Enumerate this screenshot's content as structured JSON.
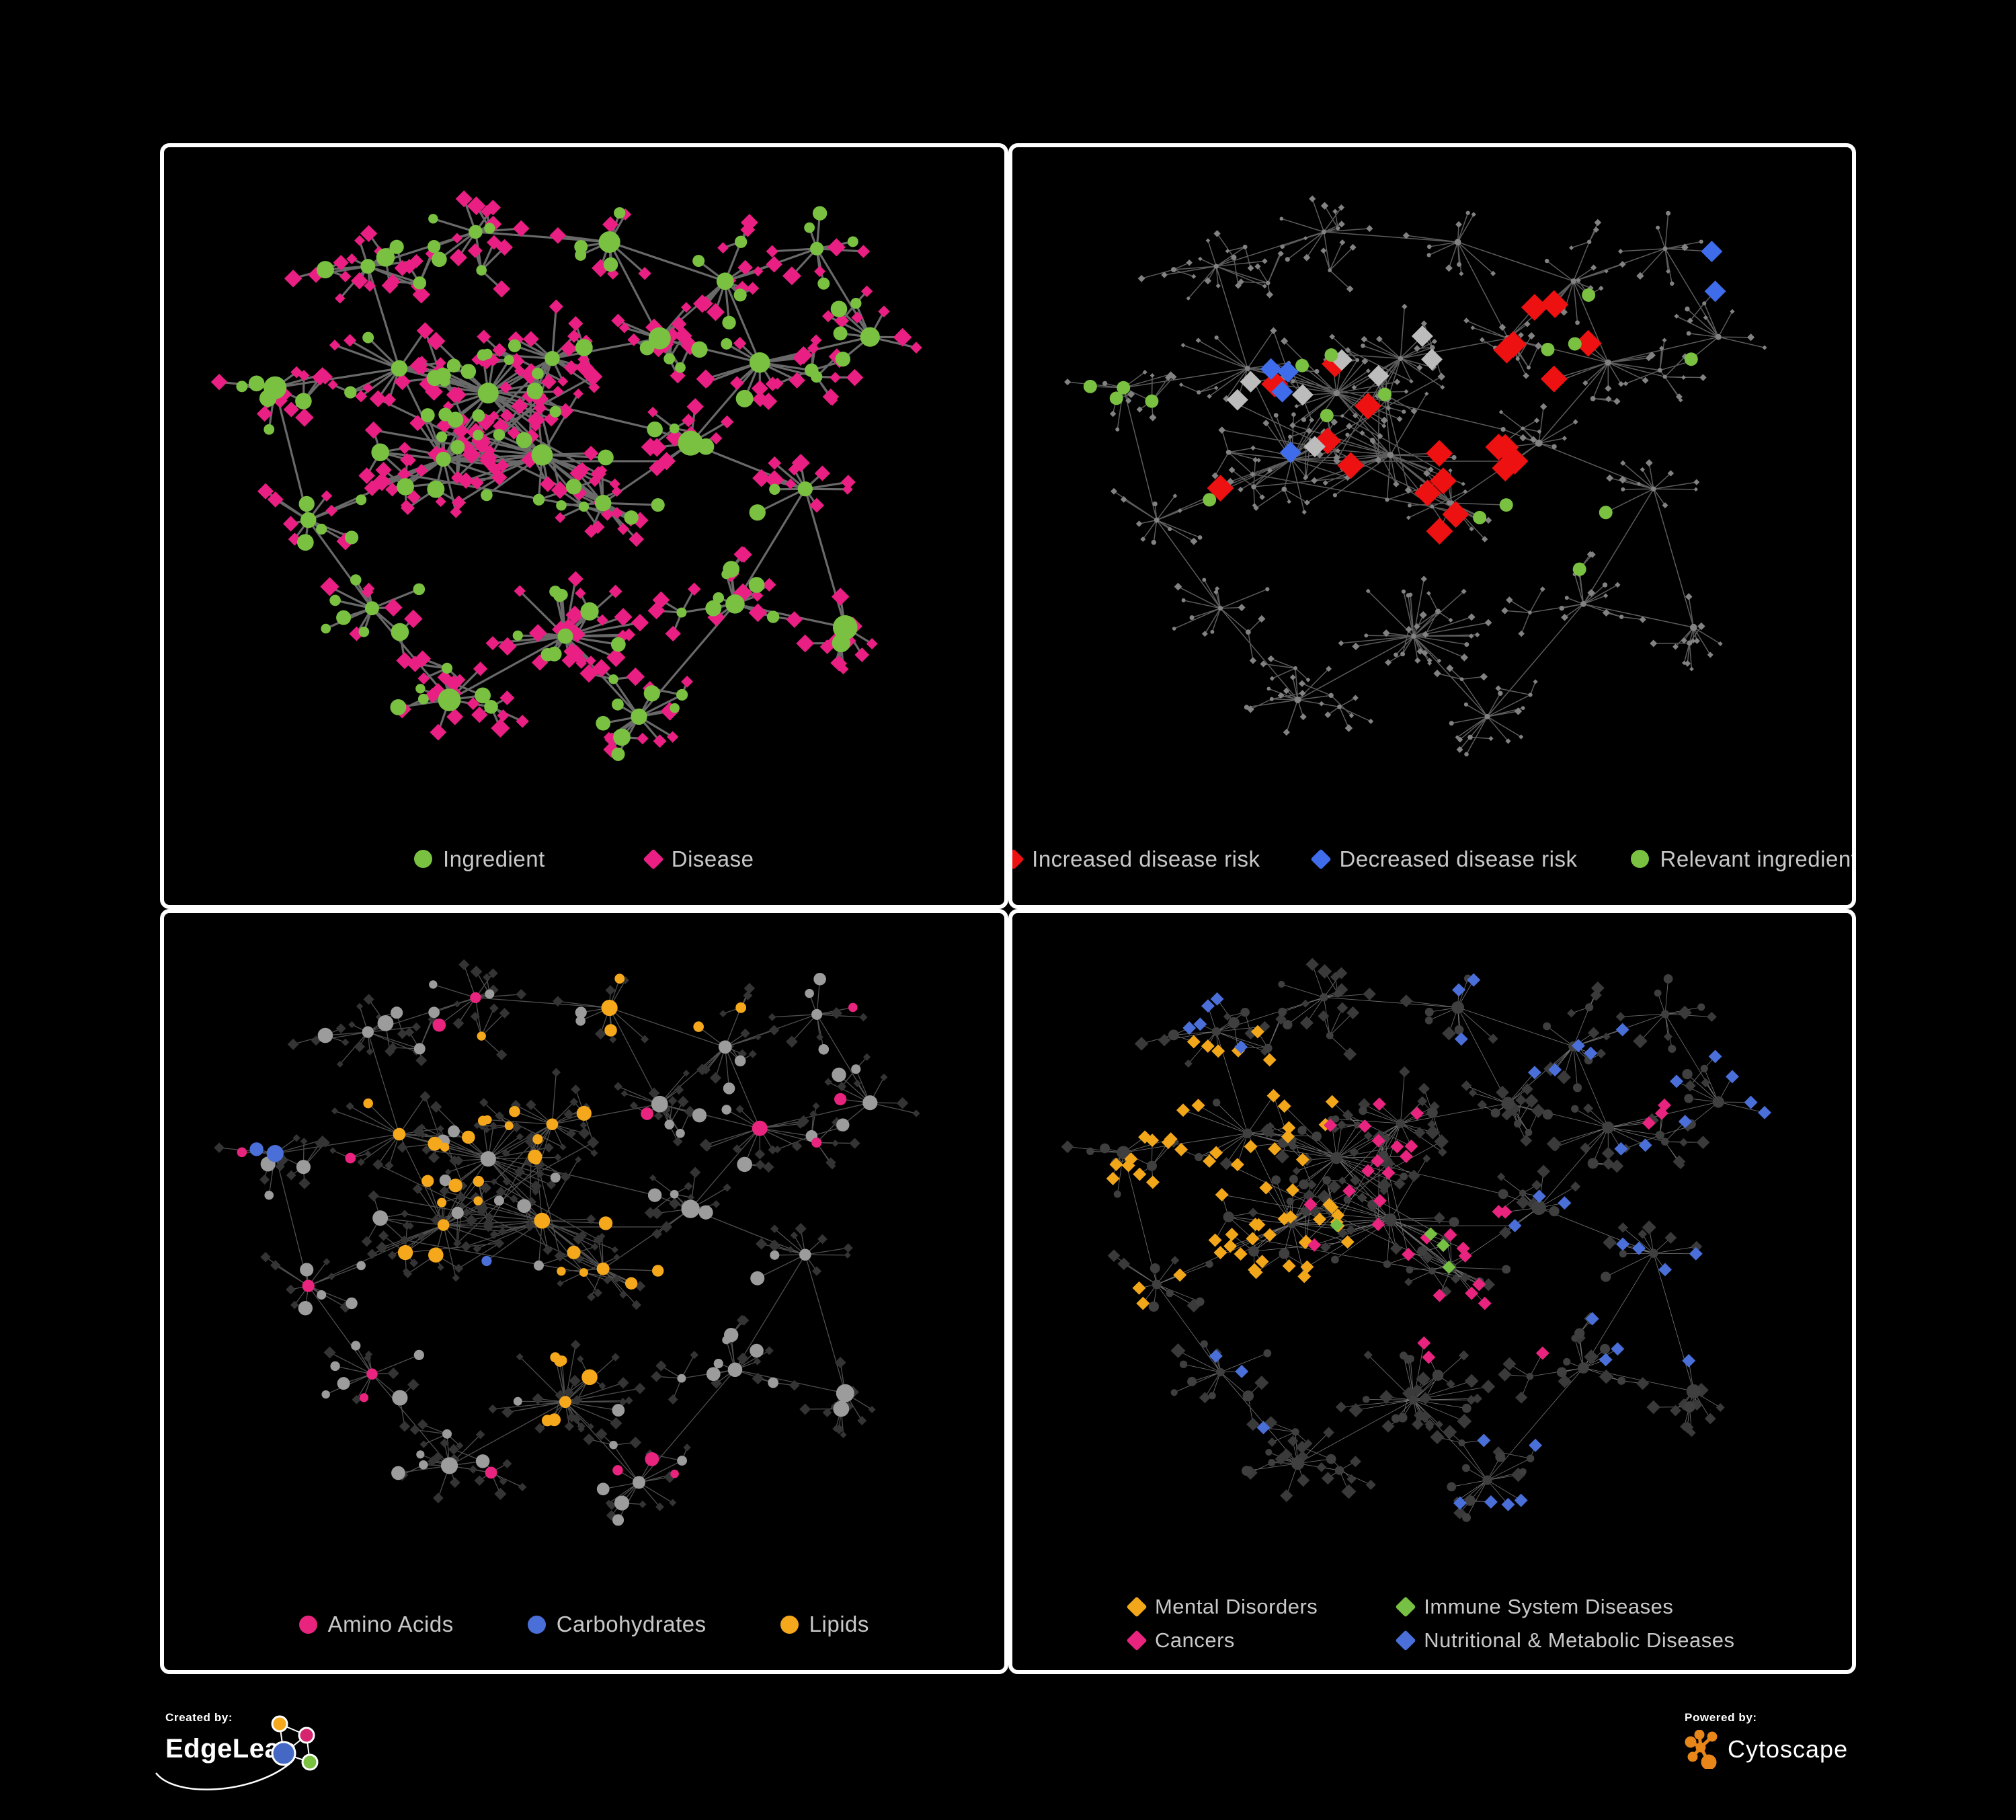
{
  "page": {
    "background": "#000000"
  },
  "panels": [
    {
      "name": "ingredient-disease-network",
      "legend": {
        "items": [
          {
            "shape": "circle",
            "color": "#7ac142",
            "label": "Ingredient"
          },
          {
            "shape": "diamond",
            "color": "#e91f83",
            "label": "Disease"
          }
        ]
      },
      "style": {
        "edge": "#6f6f6f",
        "edgeWidth": 3.2,
        "edgeOpacity": 0.95,
        "circle": "#7ac142",
        "diamond": "#e91f83",
        "circleR": [
          7,
          15
        ],
        "hubR": [
          10,
          19
        ],
        "diamondS": 11,
        "highlights": []
      }
    },
    {
      "name": "disease-risk-network",
      "legend": {
        "items": [
          {
            "shape": "diamond",
            "color": "#ed1111",
            "label": "Increased disease risk"
          },
          {
            "shape": "diamond",
            "color": "#3e6ceb",
            "label": "Decreased disease risk"
          },
          {
            "shape": "circle",
            "color": "#7ac142",
            "label": "Relevant ingredient"
          }
        ]
      },
      "style": {
        "edge": "#666666",
        "edgeWidth": 1.5,
        "edgeOpacity": 0.9,
        "circle": "#828282",
        "diamond": "#828282",
        "circleR": [
          2.8,
          4.2
        ],
        "hubR": [
          3.5,
          5.5
        ],
        "diamondS": 4.5,
        "highlights": [
          {
            "shape": "diamond",
            "color": "#ed1111",
            "size": 20,
            "count": 30,
            "regions": [
              [
                0.42,
                0.4,
                0.22
              ],
              [
                0.55,
                0.55,
                0.12
              ],
              [
                0.6,
                0.28,
                0.1
              ],
              [
                0.68,
                0.78,
                0.07
              ]
            ]
          },
          {
            "shape": "diamond",
            "color": "#3e6ceb",
            "size": 16,
            "count": 8,
            "regions": [
              [
                0.27,
                0.38,
                0.09
              ],
              [
                0.86,
                0.16,
                0.07
              ]
            ]
          },
          {
            "shape": "diamond",
            "color": "#bcbcbc",
            "size": 16,
            "count": 8,
            "regions": [
              [
                0.44,
                0.48,
                0.22
              ],
              [
                0.29,
                0.3,
                0.1
              ]
            ]
          },
          {
            "shape": "circle",
            "color": "#7ac142",
            "size": 10,
            "count": 18,
            "regions": [
              [
                0.4,
                0.38,
                0.25
              ],
              [
                0.14,
                0.4,
                0.1
              ],
              [
                0.64,
                0.57,
                0.1
              ],
              [
                0.74,
                0.3,
                0.12
              ]
            ]
          }
        ]
      }
    },
    {
      "name": "nutrient-category-network",
      "legend": {
        "items": [
          {
            "shape": "circle",
            "color": "#e8247f",
            "label": "Amino Acids"
          },
          {
            "shape": "circle",
            "color": "#4a6fd8",
            "label": "Carbohydrates"
          },
          {
            "shape": "circle",
            "color": "#f5a81c",
            "label": "Lipids"
          }
        ]
      },
      "style": {
        "edge": "#585858",
        "edgeWidth": 1.3,
        "edgeOpacity": 0.9,
        "circle": "#9c9c9c",
        "diamond": "#343434",
        "circleR": [
          6,
          13
        ],
        "hubR": [
          8,
          14
        ],
        "diamondS": 7,
        "highlights": [
          {
            "shape": "circle",
            "color": "#f5a81c",
            "size": null,
            "count": 50,
            "regions": [
              [
                0.43,
                0.25,
                0.1
              ],
              [
                0.37,
                0.45,
                0.12
              ],
              [
                0.3,
                0.34,
                0.16
              ],
              [
                0.47,
                0.73,
                0.07
              ],
              [
                0.55,
                0.55,
                0.12
              ],
              [
                0.6,
                0.12,
                0.1
              ]
            ]
          },
          {
            "shape": "circle",
            "color": "#4a6fd8",
            "size": null,
            "count": 11,
            "regions": [
              [
                0.42,
                0.26,
                0.08
              ],
              [
                0.5,
                0.6,
                0.15
              ],
              [
                0.12,
                0.3,
                0.08
              ]
            ]
          },
          {
            "shape": "circle",
            "color": "#e8247f",
            "size": null,
            "count": 16,
            "regions": [
              [
                0.12,
                0.44,
                0.14
              ],
              [
                0.3,
                0.78,
                0.15
              ],
              [
                0.55,
                0.78,
                0.12
              ],
              [
                0.68,
                0.4,
                0.15
              ],
              [
                0.86,
                0.2,
                0.09
              ],
              [
                0.4,
                0.1,
                0.1
              ]
            ]
          }
        ]
      }
    },
    {
      "name": "disease-category-network",
      "legend": {
        "items": [
          {
            "shape": "diamond",
            "color": "#f2a71b",
            "label": "Mental Disorders"
          },
          {
            "shape": "diamond",
            "color": "#76c043",
            "label": "Immune System Diseases"
          },
          {
            "shape": "diamond",
            "color": "#e8247f",
            "label": "Cancers"
          },
          {
            "shape": "diamond",
            "color": "#4a6fd8",
            "label": "Nutritional & Metabolic Diseases"
          }
        ]
      },
      "style": {
        "edge": "#909090",
        "edgeWidth": 0.9,
        "edgeOpacity": 0.75,
        "circle": "#3f3f3f",
        "diamond": "#3a3a3a",
        "circleR": [
          5,
          9
        ],
        "hubR": [
          6,
          11
        ],
        "diamondS": 8.5,
        "highlights": [
          {
            "shape": "diamond",
            "color": "#f2a71b",
            "size": 10,
            "count": 65,
            "regions": [
              [
                0.18,
                0.44,
                0.15
              ],
              [
                0.26,
                0.28,
                0.12
              ],
              [
                0.33,
                0.52,
                0.1
              ]
            ]
          },
          {
            "shape": "diamond",
            "color": "#e8247f",
            "size": 10,
            "count": 45,
            "regions": [
              [
                0.47,
                0.47,
                0.13
              ],
              [
                0.56,
                0.6,
                0.11
              ],
              [
                0.76,
                0.26,
                0.06
              ],
              [
                0.42,
                0.32,
                0.08
              ]
            ]
          },
          {
            "shape": "diamond",
            "color": "#4a6fd8",
            "size": 10,
            "count": 55,
            "regions": [
              [
                0.7,
                0.46,
                0.15
              ],
              [
                0.64,
                0.12,
                0.13
              ],
              [
                0.85,
                0.27,
                0.12
              ],
              [
                0.8,
                0.62,
                0.1
              ],
              [
                0.25,
                0.1,
                0.1
              ],
              [
                0.58,
                0.85,
                0.08
              ],
              [
                0.3,
                0.7,
                0.08
              ]
            ]
          },
          {
            "shape": "diamond",
            "color": "#76c043",
            "size": 10,
            "count": 8,
            "regions": [
              [
                0.45,
                0.42,
                0.15
              ],
              [
                0.42,
                0.88,
                0.06
              ]
            ]
          }
        ]
      }
    }
  ],
  "network": {
    "seed": 11,
    "leafDiamondProb": 0.72,
    "subhubProb": 0.12,
    "extraCoreEdges": 26,
    "clusters": [
      [
        0.38,
        0.36,
        24,
        0.085
      ],
      [
        0.45,
        0.45,
        24,
        0.09
      ],
      [
        0.32,
        0.47,
        20,
        0.08
      ],
      [
        0.47,
        0.3,
        16,
        0.07
      ],
      [
        0.26,
        0.33,
        14,
        0.07
      ],
      [
        0.52,
        0.53,
        14,
        0.065
      ],
      [
        0.47,
        0.74,
        26,
        0.075
      ],
      [
        0.22,
        0.17,
        12,
        0.055
      ],
      [
        0.37,
        0.11,
        10,
        0.05
      ],
      [
        0.53,
        0.13,
        10,
        0.055
      ],
      [
        0.67,
        0.19,
        12,
        0.055
      ],
      [
        0.8,
        0.13,
        9,
        0.05
      ],
      [
        0.72,
        0.32,
        13,
        0.06
      ],
      [
        0.85,
        0.27,
        9,
        0.05
      ],
      [
        0.64,
        0.44,
        10,
        0.05
      ],
      [
        0.78,
        0.5,
        12,
        0.055
      ],
      [
        0.11,
        0.36,
        10,
        0.055
      ],
      [
        0.15,
        0.55,
        12,
        0.06
      ],
      [
        0.24,
        0.68,
        12,
        0.055
      ],
      [
        0.33,
        0.83,
        12,
        0.055
      ],
      [
        0.57,
        0.86,
        13,
        0.055
      ],
      [
        0.68,
        0.68,
        12,
        0.055
      ],
      [
        0.83,
        0.72,
        8,
        0.05
      ],
      [
        0.6,
        0.27,
        10,
        0.05
      ]
    ]
  },
  "footer": {
    "created_by": "Created by:",
    "brand": "EdgeLeap",
    "powered_by": "Powered by:",
    "engine": "Cytoscape",
    "edgeleap_colors": {
      "orange": "#f5a81c",
      "pink": "#d6246e",
      "blue": "#4468c4",
      "green": "#7ac142"
    },
    "cytoscape_color": "#e8861a"
  }
}
